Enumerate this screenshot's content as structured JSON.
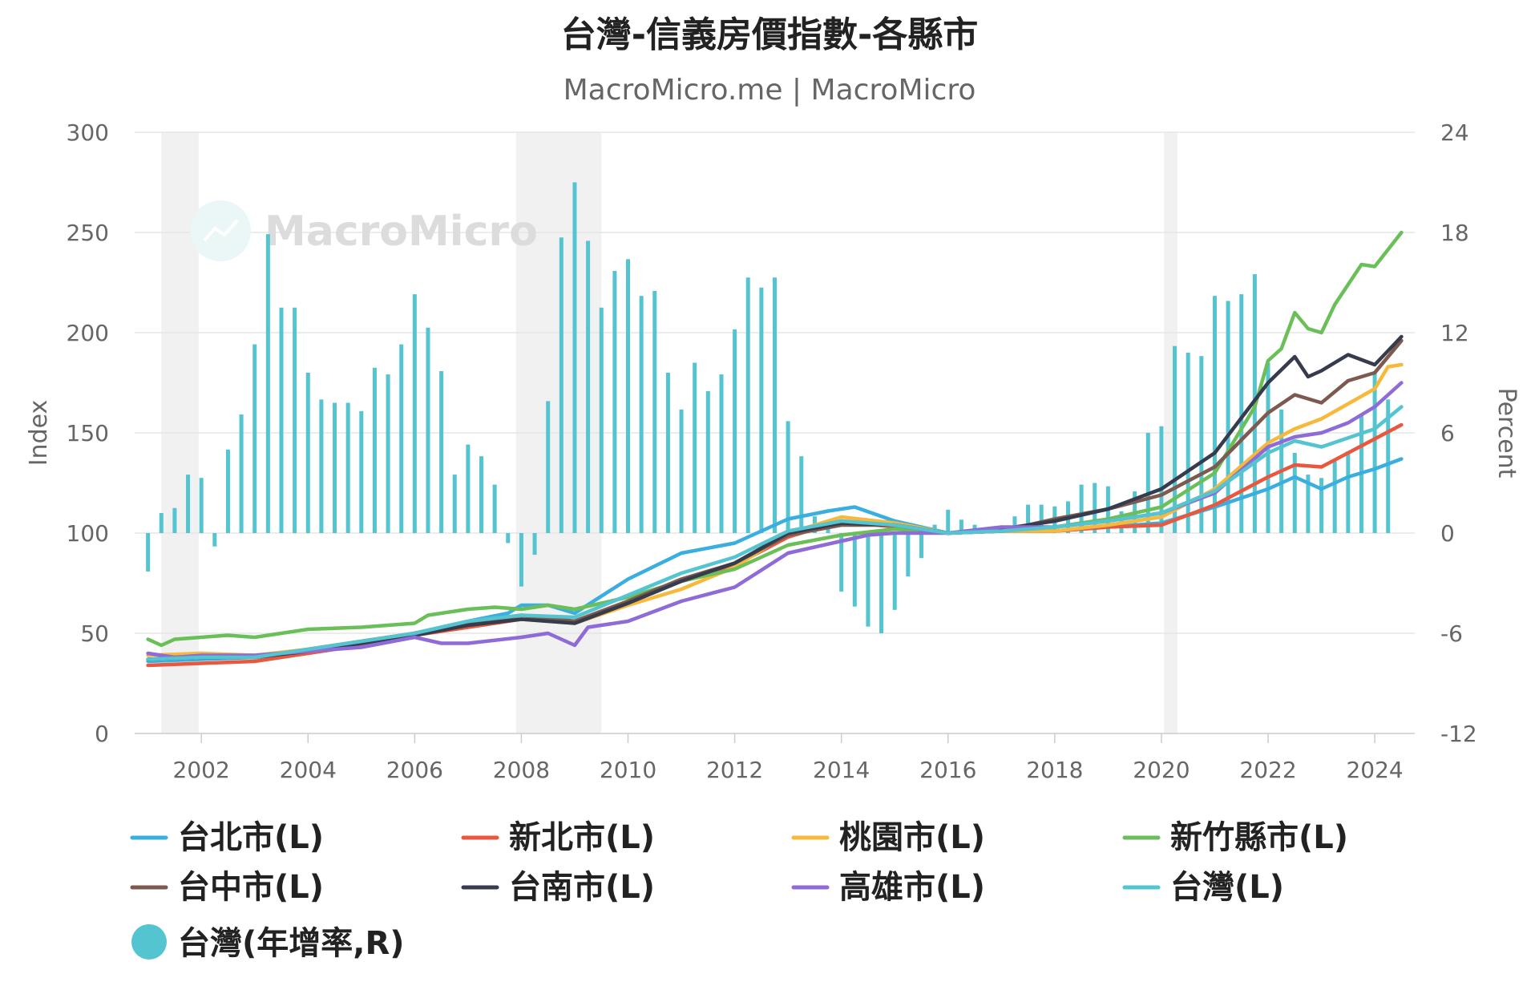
{
  "chart_data": {
    "type": "line",
    "title": "台灣-信義房價指數-各縣市",
    "subtitle": "MacroMicro.me | MacroMicro",
    "watermark": "MacroMicro",
    "ylabel_left": "Index",
    "ylabel_right": "Percent",
    "ylim_left": [
      0,
      300
    ],
    "ylim_right": [
      -12,
      24
    ],
    "yticks_left": [
      "0",
      "50",
      "100",
      "150",
      "200",
      "250",
      "300"
    ],
    "yticks_right": [
      "-12",
      "-6",
      "0",
      "6",
      "12",
      "18",
      "24"
    ],
    "xlim": [
      2000.75,
      2024.75
    ],
    "xticks": [
      "2002",
      "2004",
      "2006",
      "2008",
      "2010",
      "2012",
      "2014",
      "2016",
      "2018",
      "2020",
      "2022",
      "2024"
    ],
    "recession_bands": [
      [
        2001.25,
        2001.95
      ],
      [
        2007.9,
        2009.5
      ],
      [
        2020.05,
        2020.3
      ]
    ],
    "grid": true,
    "legend_position": "bottom",
    "series": [
      {
        "name": "台北市(L)",
        "axis": "left",
        "color": "#3aaedf",
        "points": [
          [
            2001.0,
            36
          ],
          [
            2002.0,
            37
          ],
          [
            2003.0,
            38
          ],
          [
            2004.0,
            41
          ],
          [
            2005.0,
            45
          ],
          [
            2006.0,
            50
          ],
          [
            2007.0,
            56
          ],
          [
            2007.75,
            60
          ],
          [
            2008.0,
            64
          ],
          [
            2008.5,
            64
          ],
          [
            2009.0,
            60
          ],
          [
            2010.0,
            77
          ],
          [
            2011.0,
            90
          ],
          [
            2012.0,
            95
          ],
          [
            2013.0,
            107
          ],
          [
            2013.75,
            111
          ],
          [
            2014.25,
            113
          ],
          [
            2015.0,
            106
          ],
          [
            2016.0,
            100
          ],
          [
            2017.0,
            101
          ],
          [
            2018.0,
            101
          ],
          [
            2019.0,
            103
          ],
          [
            2020.0,
            105
          ],
          [
            2021.0,
            113
          ],
          [
            2022.0,
            122
          ],
          [
            2022.5,
            128
          ],
          [
            2023.0,
            122
          ],
          [
            2023.5,
            128
          ],
          [
            2024.0,
            132
          ],
          [
            2024.5,
            137
          ]
        ]
      },
      {
        "name": "新北市(L)",
        "axis": "left",
        "color": "#e9573f",
        "points": [
          [
            2001.0,
            34
          ],
          [
            2002.0,
            35
          ],
          [
            2003.0,
            36
          ],
          [
            2004.0,
            40
          ],
          [
            2005.0,
            44
          ],
          [
            2006.0,
            49
          ],
          [
            2007.0,
            53
          ],
          [
            2008.0,
            57
          ],
          [
            2009.0,
            56
          ],
          [
            2010.0,
            66
          ],
          [
            2011.0,
            76
          ],
          [
            2012.0,
            84
          ],
          [
            2013.0,
            98
          ],
          [
            2014.0,
            106
          ],
          [
            2015.0,
            103
          ],
          [
            2016.0,
            100
          ],
          [
            2017.0,
            101
          ],
          [
            2018.0,
            101
          ],
          [
            2019.0,
            103
          ],
          [
            2020.0,
            104
          ],
          [
            2021.0,
            114
          ],
          [
            2022.0,
            128
          ],
          [
            2022.5,
            134
          ],
          [
            2023.0,
            133
          ],
          [
            2024.0,
            147
          ],
          [
            2024.5,
            154
          ]
        ]
      },
      {
        "name": "桃園市(L)",
        "axis": "left",
        "color": "#f6b93b",
        "points": [
          [
            2001.0,
            39
          ],
          [
            2002.0,
            40
          ],
          [
            2003.0,
            39
          ],
          [
            2004.0,
            42
          ],
          [
            2005.0,
            46
          ],
          [
            2006.0,
            50
          ],
          [
            2007.0,
            55
          ],
          [
            2008.0,
            57
          ],
          [
            2009.0,
            55
          ],
          [
            2010.0,
            64
          ],
          [
            2011.0,
            72
          ],
          [
            2012.0,
            83
          ],
          [
            2013.0,
            100
          ],
          [
            2014.0,
            108
          ],
          [
            2015.0,
            105
          ],
          [
            2016.0,
            100
          ],
          [
            2017.0,
            101
          ],
          [
            2018.0,
            101
          ],
          [
            2019.0,
            104
          ],
          [
            2020.0,
            108
          ],
          [
            2021.0,
            122
          ],
          [
            2022.0,
            145
          ],
          [
            2022.5,
            152
          ],
          [
            2023.0,
            157
          ],
          [
            2024.0,
            172
          ],
          [
            2024.25,
            183
          ],
          [
            2024.5,
            184
          ]
        ]
      },
      {
        "name": "新竹縣市(L)",
        "axis": "left",
        "color": "#6abf59",
        "points": [
          [
            2001.0,
            47
          ],
          [
            2001.25,
            44
          ],
          [
            2001.5,
            47
          ],
          [
            2002.0,
            48
          ],
          [
            2002.5,
            49
          ],
          [
            2003.0,
            48
          ],
          [
            2004.0,
            52
          ],
          [
            2005.0,
            53
          ],
          [
            2006.0,
            55
          ],
          [
            2006.25,
            59
          ],
          [
            2007.0,
            62
          ],
          [
            2007.5,
            63
          ],
          [
            2008.0,
            62
          ],
          [
            2008.5,
            64
          ],
          [
            2009.0,
            62
          ],
          [
            2010.0,
            68
          ],
          [
            2011.0,
            76
          ],
          [
            2012.0,
            82
          ],
          [
            2013.0,
            94
          ],
          [
            2014.0,
            99
          ],
          [
            2015.0,
            102
          ],
          [
            2016.0,
            100
          ],
          [
            2017.0,
            101
          ],
          [
            2018.0,
            103
          ],
          [
            2019.0,
            107
          ],
          [
            2020.0,
            113
          ],
          [
            2021.0,
            130
          ],
          [
            2021.75,
            163
          ],
          [
            2022.0,
            186
          ],
          [
            2022.25,
            192
          ],
          [
            2022.5,
            210
          ],
          [
            2022.75,
            202
          ],
          [
            2023.0,
            200
          ],
          [
            2023.25,
            214
          ],
          [
            2023.75,
            234
          ],
          [
            2024.0,
            233
          ],
          [
            2024.5,
            250
          ]
        ]
      },
      {
        "name": "台中市(L)",
        "axis": "left",
        "color": "#7d5a4f",
        "points": [
          [
            2001.0,
            37
          ],
          [
            2002.0,
            38
          ],
          [
            2003.0,
            38
          ],
          [
            2004.0,
            42
          ],
          [
            2005.0,
            46
          ],
          [
            2006.0,
            50
          ],
          [
            2007.0,
            55
          ],
          [
            2008.0,
            59
          ],
          [
            2009.0,
            56
          ],
          [
            2010.0,
            66
          ],
          [
            2011.0,
            77
          ],
          [
            2012.0,
            85
          ],
          [
            2013.0,
            99
          ],
          [
            2014.0,
            104
          ],
          [
            2015.0,
            104
          ],
          [
            2016.0,
            100
          ],
          [
            2017.0,
            101
          ],
          [
            2018.0,
            107
          ],
          [
            2019.0,
            112
          ],
          [
            2020.0,
            119
          ],
          [
            2021.0,
            133
          ],
          [
            2022.0,
            160
          ],
          [
            2022.5,
            169
          ],
          [
            2023.0,
            165
          ],
          [
            2023.5,
            176
          ],
          [
            2024.0,
            180
          ],
          [
            2024.5,
            196
          ]
        ]
      },
      {
        "name": "台南市(L)",
        "axis": "left",
        "color": "#363b4d",
        "points": [
          [
            2001.0,
            37
          ],
          [
            2002.0,
            38
          ],
          [
            2003.0,
            38
          ],
          [
            2004.0,
            41
          ],
          [
            2005.0,
            45
          ],
          [
            2006.0,
            49
          ],
          [
            2007.0,
            54
          ],
          [
            2008.0,
            57
          ],
          [
            2009.0,
            55
          ],
          [
            2010.0,
            65
          ],
          [
            2011.0,
            76
          ],
          [
            2012.0,
            85
          ],
          [
            2013.0,
            100
          ],
          [
            2014.0,
            105
          ],
          [
            2015.0,
            104
          ],
          [
            2016.0,
            100
          ],
          [
            2017.0,
            102
          ],
          [
            2018.0,
            106
          ],
          [
            2019.0,
            112
          ],
          [
            2020.0,
            122
          ],
          [
            2021.0,
            140
          ],
          [
            2022.0,
            175
          ],
          [
            2022.5,
            188
          ],
          [
            2022.75,
            178
          ],
          [
            2023.0,
            181
          ],
          [
            2023.5,
            189
          ],
          [
            2024.0,
            184
          ],
          [
            2024.5,
            198
          ]
        ]
      },
      {
        "name": "高雄市(L)",
        "axis": "left",
        "color": "#8e6bd6",
        "points": [
          [
            2001.0,
            40
          ],
          [
            2001.5,
            38
          ],
          [
            2002.0,
            39
          ],
          [
            2003.0,
            39
          ],
          [
            2004.0,
            41
          ],
          [
            2005.0,
            43
          ],
          [
            2006.0,
            48
          ],
          [
            2006.5,
            45
          ],
          [
            2007.0,
            45
          ],
          [
            2008.0,
            48
          ],
          [
            2008.5,
            50
          ],
          [
            2009.0,
            44
          ],
          [
            2009.25,
            53
          ],
          [
            2010.0,
            56
          ],
          [
            2011.0,
            66
          ],
          [
            2012.0,
            73
          ],
          [
            2013.0,
            90
          ],
          [
            2014.0,
            96
          ],
          [
            2014.5,
            99
          ],
          [
            2015.0,
            100
          ],
          [
            2016.0,
            100
          ],
          [
            2017.0,
            103
          ],
          [
            2018.0,
            103
          ],
          [
            2019.0,
            106
          ],
          [
            2020.0,
            110
          ],
          [
            2021.0,
            120
          ],
          [
            2022.0,
            143
          ],
          [
            2022.5,
            148
          ],
          [
            2023.0,
            150
          ],
          [
            2023.5,
            155
          ],
          [
            2024.0,
            163
          ],
          [
            2024.5,
            175
          ]
        ]
      },
      {
        "name": "台灣(L)",
        "axis": "left",
        "color": "#54c4d1",
        "points": [
          [
            2001.0,
            37
          ],
          [
            2002.0,
            38
          ],
          [
            2003.0,
            38
          ],
          [
            2004.0,
            42
          ],
          [
            2005.0,
            46
          ],
          [
            2006.0,
            50
          ],
          [
            2007.0,
            56
          ],
          [
            2008.0,
            59
          ],
          [
            2009.0,
            58
          ],
          [
            2010.0,
            69
          ],
          [
            2011.0,
            80
          ],
          [
            2012.0,
            88
          ],
          [
            2013.0,
            101
          ],
          [
            2014.0,
            106
          ],
          [
            2015.0,
            104
          ],
          [
            2016.0,
            100
          ],
          [
            2017.0,
            101
          ],
          [
            2018.0,
            103
          ],
          [
            2019.0,
            106
          ],
          [
            2020.0,
            110
          ],
          [
            2021.0,
            121
          ],
          [
            2022.0,
            140
          ],
          [
            2022.5,
            146
          ],
          [
            2023.0,
            143
          ],
          [
            2024.0,
            152
          ],
          [
            2024.5,
            163
          ]
        ]
      }
    ],
    "bar_series": {
      "name": "台灣(年增率,R)",
      "axis": "right",
      "color": "#54c4d1",
      "start_x": 2001.0,
      "step": 0.25,
      "values": [
        -2.3,
        1.2,
        1.5,
        3.5,
        3.3,
        -0.8,
        5.0,
        7.1,
        11.3,
        17.9,
        13.5,
        13.5,
        9.6,
        8.0,
        7.8,
        7.8,
        7.3,
        9.9,
        9.5,
        11.3,
        14.3,
        12.3,
        9.7,
        3.5,
        5.3,
        4.6,
        2.9,
        -0.6,
        -3.2,
        -1.3,
        7.9,
        17.7,
        21.0,
        17.5,
        13.5,
        15.7,
        16.4,
        14.2,
        14.5,
        9.6,
        7.4,
        10.2,
        8.5,
        9.5,
        12.2,
        15.3,
        14.7,
        15.3,
        6.7,
        4.6,
        1.0,
        0.3,
        -3.5,
        -4.4,
        -5.6,
        -6.0,
        -4.6,
        -2.6,
        -1.5,
        0.5,
        1.4,
        0.8,
        0.5,
        0.3,
        0.2,
        1.0,
        1.7,
        1.7,
        1.6,
        1.9,
        2.9,
        3.0,
        2.8,
        1.3,
        2.5,
        6.0,
        6.4,
        11.2,
        10.8,
        10.6,
        14.2,
        13.9,
        14.3,
        15.5,
        10.2,
        7.4,
        4.8,
        3.5,
        3.3,
        4.3,
        4.9,
        7.1,
        9.6,
        8.0
      ]
    }
  }
}
